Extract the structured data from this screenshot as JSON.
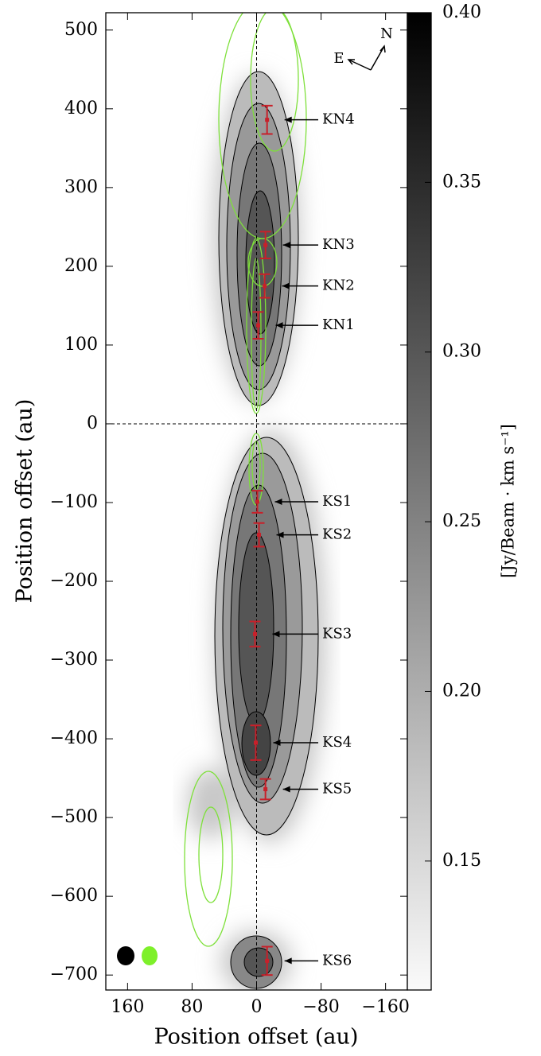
{
  "chart_data": {
    "type": "scatter",
    "xlabel": "Position offset (au)",
    "ylabel": "Position offset (au)",
    "xlim": [
      187,
      -187
    ],
    "ylim": [
      -719,
      522
    ],
    "xticks": [
      160,
      80,
      0,
      {
        "value": -80,
        "label": "−80"
      },
      {
        "value": -160,
        "label": "−160"
      }
    ],
    "yticks": [
      500,
      400,
      300,
      200,
      100,
      0,
      {
        "value": -100,
        "label": "−100"
      },
      {
        "value": -200,
        "label": "−200"
      },
      {
        "value": -300,
        "label": "−300"
      },
      {
        "value": -400,
        "label": "−400"
      },
      {
        "value": -500,
        "label": "−500"
      },
      {
        "value": -600,
        "label": "−600"
      },
      {
        "value": -700,
        "label": "−700"
      }
    ],
    "labels": [
      "KN4",
      "KN3",
      "KN2",
      "KN1",
      "KS1",
      "KS2",
      "KS3",
      "KS4",
      "KS5",
      "KS6"
    ],
    "x": [
      -13,
      -11,
      -10,
      -2,
      -1,
      -3,
      2,
      1,
      -11,
      -13
    ],
    "values": [
      386,
      227,
      175,
      125,
      -99,
      -141,
      -267,
      -405,
      -464,
      -682
    ],
    "errors": [
      18,
      17,
      15,
      17,
      14,
      15,
      16,
      22,
      13,
      18
    ],
    "color": "#c8202a",
    "colorbar": {
      "label": "[Jy/Beam · km s⁻¹]",
      "lim": [
        0.112,
        0.4
      ],
      "ticks": [
        {
          "value": 0.4,
          "label": "0.40"
        },
        0.35,
        {
          "value": 0.3,
          "label": "0.30"
        },
        0.25,
        {
          "value": 0.2,
          "label": "0.20"
        },
        0.15
      ]
    },
    "compass": {
      "east": "E",
      "north": "N"
    }
  }
}
